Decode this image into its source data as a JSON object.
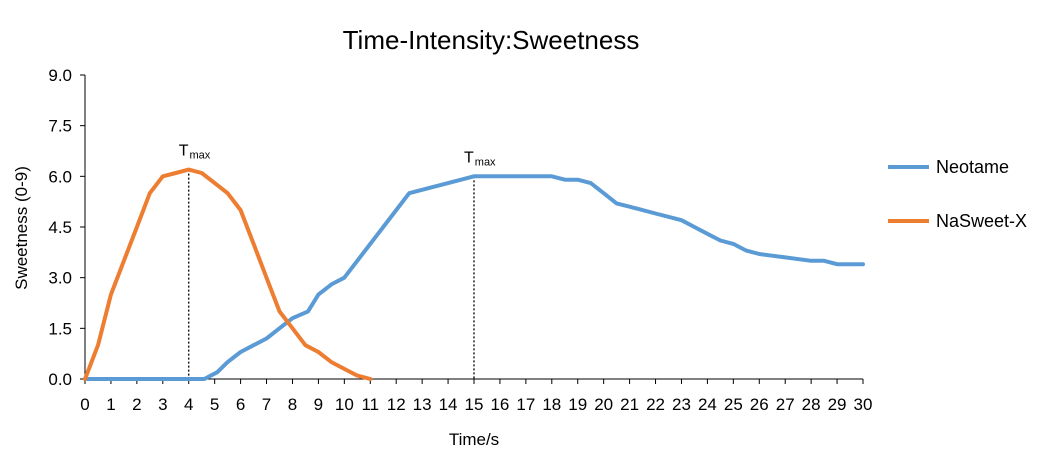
{
  "chart_data": {
    "type": "line",
    "title": "Time-Intensity:Sweetness",
    "xlabel": "Time/s",
    "ylabel": "Sweetness  (0-9)",
    "xlim": [
      0,
      30
    ],
    "ylim": [
      0,
      9
    ],
    "x_ticks": [
      "0",
      "1",
      "2",
      "3",
      "4",
      "5",
      "6",
      "7",
      "8",
      "9",
      "10",
      "11",
      "12",
      "13",
      "14",
      "15",
      "16",
      "17",
      "18",
      "19",
      "20",
      "21",
      "22",
      "23",
      "24",
      "25",
      "26",
      "27",
      "28",
      "29",
      "30"
    ],
    "y_ticks": [
      "0.0",
      "1.5",
      "3.0",
      "4.5",
      "6.0",
      "7.5",
      "9.0"
    ],
    "grid": false,
    "legend_position": "right",
    "series": [
      {
        "name": "Neotame",
        "color": "#5B9BD5",
        "points": [
          [
            0,
            0
          ],
          [
            1,
            0
          ],
          [
            2,
            0
          ],
          [
            3,
            0
          ],
          [
            4,
            0
          ],
          [
            4.6,
            0
          ],
          [
            5.1,
            0.2
          ],
          [
            5.5,
            0.5
          ],
          [
            6,
            0.8
          ],
          [
            6.5,
            1.0
          ],
          [
            7,
            1.2
          ],
          [
            7.5,
            1.5
          ],
          [
            8,
            1.8
          ],
          [
            8.6,
            2.0
          ],
          [
            9,
            2.5
          ],
          [
            9.5,
            2.8
          ],
          [
            10,
            3.0
          ],
          [
            10.5,
            3.5
          ],
          [
            11,
            4.0
          ],
          [
            12,
            5.0
          ],
          [
            12.5,
            5.5
          ],
          [
            13,
            5.6
          ],
          [
            14,
            5.8
          ],
          [
            15,
            6.0
          ],
          [
            16,
            6.0
          ],
          [
            17,
            6.0
          ],
          [
            18,
            6.0
          ],
          [
            18.5,
            5.9
          ],
          [
            19,
            5.9
          ],
          [
            19.5,
            5.8
          ],
          [
            20,
            5.5
          ],
          [
            20.5,
            5.2
          ],
          [
            21,
            5.1
          ],
          [
            22,
            4.9
          ],
          [
            23,
            4.7
          ],
          [
            23.5,
            4.5
          ],
          [
            24,
            4.3
          ],
          [
            24.5,
            4.1
          ],
          [
            25,
            4.0
          ],
          [
            25.5,
            3.8
          ],
          [
            26,
            3.7
          ],
          [
            27,
            3.6
          ],
          [
            28,
            3.5
          ],
          [
            28.5,
            3.5
          ],
          [
            29,
            3.4
          ],
          [
            30,
            3.4
          ]
        ]
      },
      {
        "name": "NaSweet-X",
        "color": "#ED7D31",
        "points": [
          [
            0,
            0
          ],
          [
            0.5,
            1.0
          ],
          [
            1,
            2.5
          ],
          [
            1.5,
            3.5
          ],
          [
            2,
            4.5
          ],
          [
            2.5,
            5.5
          ],
          [
            3,
            6.0
          ],
          [
            3.5,
            6.1
          ],
          [
            4,
            6.2
          ],
          [
            4.5,
            6.1
          ],
          [
            5,
            5.8
          ],
          [
            5.5,
            5.5
          ],
          [
            6,
            5.0
          ],
          [
            6.5,
            4.0
          ],
          [
            7,
            3.0
          ],
          [
            7.5,
            2.0
          ],
          [
            8,
            1.5
          ],
          [
            8.5,
            1.0
          ],
          [
            9,
            0.8
          ],
          [
            9.5,
            0.5
          ],
          [
            10,
            0.3
          ],
          [
            10.5,
            0.1
          ],
          [
            11,
            0.0
          ]
        ]
      }
    ],
    "annotations": [
      {
        "label": "T",
        "subscript": "max",
        "x": 4,
        "y": 6.2
      },
      {
        "label": "T",
        "subscript": "max",
        "x": 15,
        "y": 6.0
      }
    ]
  }
}
